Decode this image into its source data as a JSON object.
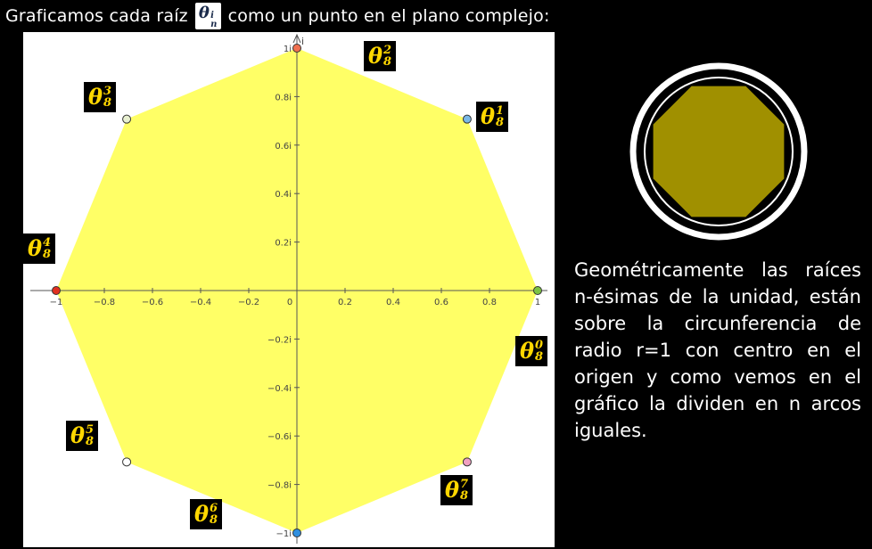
{
  "header": {
    "text_before": "Graficamos cada raíz",
    "symbol": "θ",
    "symbol_sub": "n",
    "symbol_sup": "i",
    "text_after": "como un punto en el plano complejo:"
  },
  "chart_data": {
    "type": "scatter",
    "title": "",
    "x_ticks": [
      "−1",
      "−0.8",
      "−0.6",
      "−0.4",
      "−0.2",
      "0",
      "0.2",
      "0.4",
      "0.6",
      "0.8",
      "1"
    ],
    "y_ticks": [
      "1i",
      "0.8i",
      "0.6i",
      "0.4i",
      "0.2i",
      "−0.2i",
      "−0.4i",
      "−0.6i",
      "−0.8i",
      "−1i"
    ],
    "y_axis_label": "i",
    "xlim": [
      -1,
      1
    ],
    "ylim": [
      -1,
      1
    ],
    "grid": false,
    "fill_color": "#ffff66",
    "points": [
      {
        "label_sup": "0",
        "x": 1,
        "y": 0,
        "color": "#7cc242"
      },
      {
        "label_sup": "1",
        "x": 0.7071,
        "y": 0.7071,
        "color": "#7ab8e6"
      },
      {
        "label_sup": "2",
        "x": 0,
        "y": 1,
        "color": "#f07050"
      },
      {
        "label_sup": "3",
        "x": -0.7071,
        "y": 0.7071,
        "color": "#e8f0d0"
      },
      {
        "label_sup": "4",
        "x": -1,
        "y": 0,
        "color": "#e03020"
      },
      {
        "label_sup": "5",
        "x": -0.7071,
        "y": -0.7071,
        "color": "#ffffff"
      },
      {
        "label_sup": "6",
        "x": 0,
        "y": -1,
        "color": "#3090e0"
      },
      {
        "label_sup": "7",
        "x": 0.7071,
        "y": -0.7071,
        "color": "#f0a0c0"
      }
    ],
    "label_symbol": "θ",
    "label_sub": "8"
  },
  "description": "Geométricamente las raíces n-ésimas de la unidad, están sobre la circunferencia de radio r=1 con centro en el origen y como vemos en el gráfico la dividen en n arcos iguales.",
  "colors": {
    "background": "#000000",
    "polygon_fill": "#ffff66",
    "label_text": "#ffd700",
    "icon_fill": "#a09000"
  }
}
